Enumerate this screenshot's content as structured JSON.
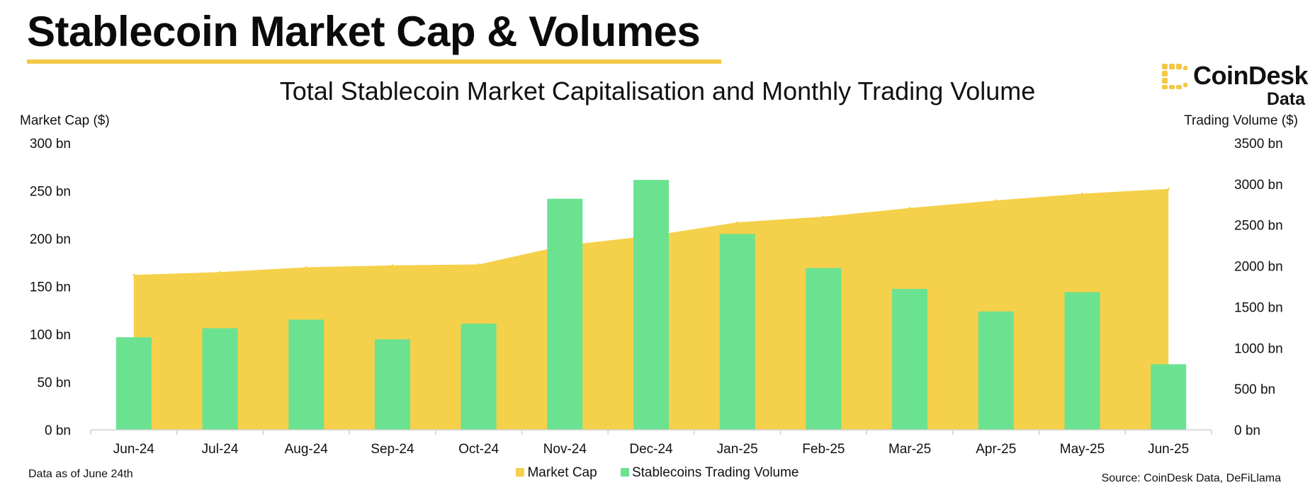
{
  "headline": "Stablecoin Market Cap & Volumes",
  "logo": {
    "name": "CoinDesk",
    "sub": "Data"
  },
  "note": "Data as of June 24th",
  "source": "Source: CoinDesk Data, DeFiLlama",
  "colors": {
    "market_cap": "#f5d04a",
    "volume": "#6be290",
    "rule": "#f3c845",
    "text": "#111111"
  },
  "chart_data": {
    "type": "bar",
    "title": "Total Stablecoin Market Capitalisation and Monthly Trading Volume",
    "categories": [
      "Jun-24",
      "Jul-24",
      "Aug-24",
      "Sep-24",
      "Oct-24",
      "Nov-24",
      "Dec-24",
      "Jan-25",
      "Feb-25",
      "Mar-25",
      "Apr-25",
      "May-25",
      "Jun-25"
    ],
    "left_axis": {
      "label": "Market Cap ($)",
      "ylim": [
        0,
        300
      ],
      "ticks": [
        "0 bn",
        "50 bn",
        "100 bn",
        "150 bn",
        "200 bn",
        "250 bn",
        "300 bn"
      ]
    },
    "right_axis": {
      "label": "Trading Volume ($)",
      "ylim": [
        0,
        3500
      ],
      "ticks": [
        "0 bn",
        "500 bn",
        "1000 bn",
        "1500 bn",
        "2000 bn",
        "2500 bn",
        "3000 bn",
        "3500 bn"
      ]
    },
    "series": [
      {
        "name": "Market Cap",
        "type": "area",
        "axis": "left",
        "unit": "bn",
        "values": [
          162,
          165,
          170,
          172,
          173,
          193,
          203,
          217,
          223,
          232,
          240,
          247,
          252
        ]
      },
      {
        "name": "Stablecoins Trading Volume",
        "type": "bar",
        "axis": "right",
        "unit": "bn",
        "values": [
          1130,
          1240,
          1345,
          1105,
          1295,
          2820,
          3050,
          2390,
          1975,
          1720,
          1445,
          1680,
          800
        ]
      }
    ],
    "grid": false,
    "legend": "bottom-center"
  }
}
